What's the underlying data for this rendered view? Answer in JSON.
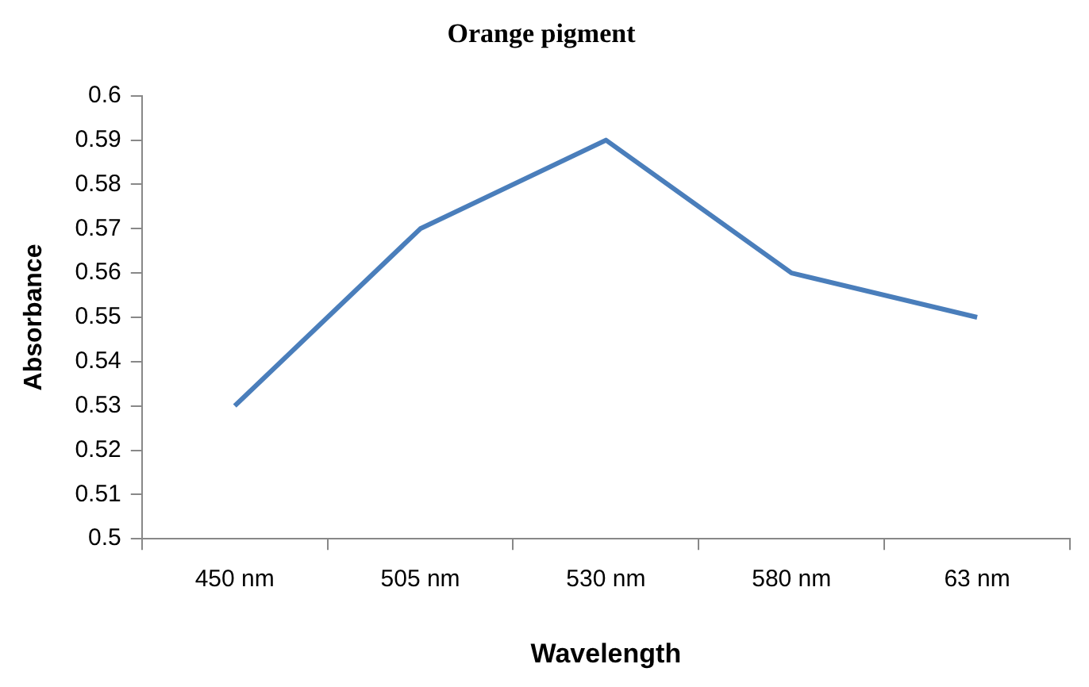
{
  "chart_data": {
    "type": "line",
    "title": "Orange pigment",
    "xlabel": "Wavelength",
    "ylabel": "Absorbance",
    "categories": [
      "450 nm",
      "505 nm",
      "530 nm",
      "580 nm",
      "63 nm"
    ],
    "series": [
      {
        "color": "#4a7ebb",
        "values": [
          0.53,
          0.57,
          0.59,
          0.56,
          0.55
        ]
      }
    ],
    "ylim": [
      0.5,
      0.6
    ],
    "yticks": [
      0.5,
      0.51,
      0.52,
      0.53,
      0.54,
      0.55,
      0.56,
      0.57,
      0.58,
      0.59,
      0.6
    ],
    "grid": false,
    "legend": false,
    "marker": "none",
    "line_style": "solid"
  }
}
